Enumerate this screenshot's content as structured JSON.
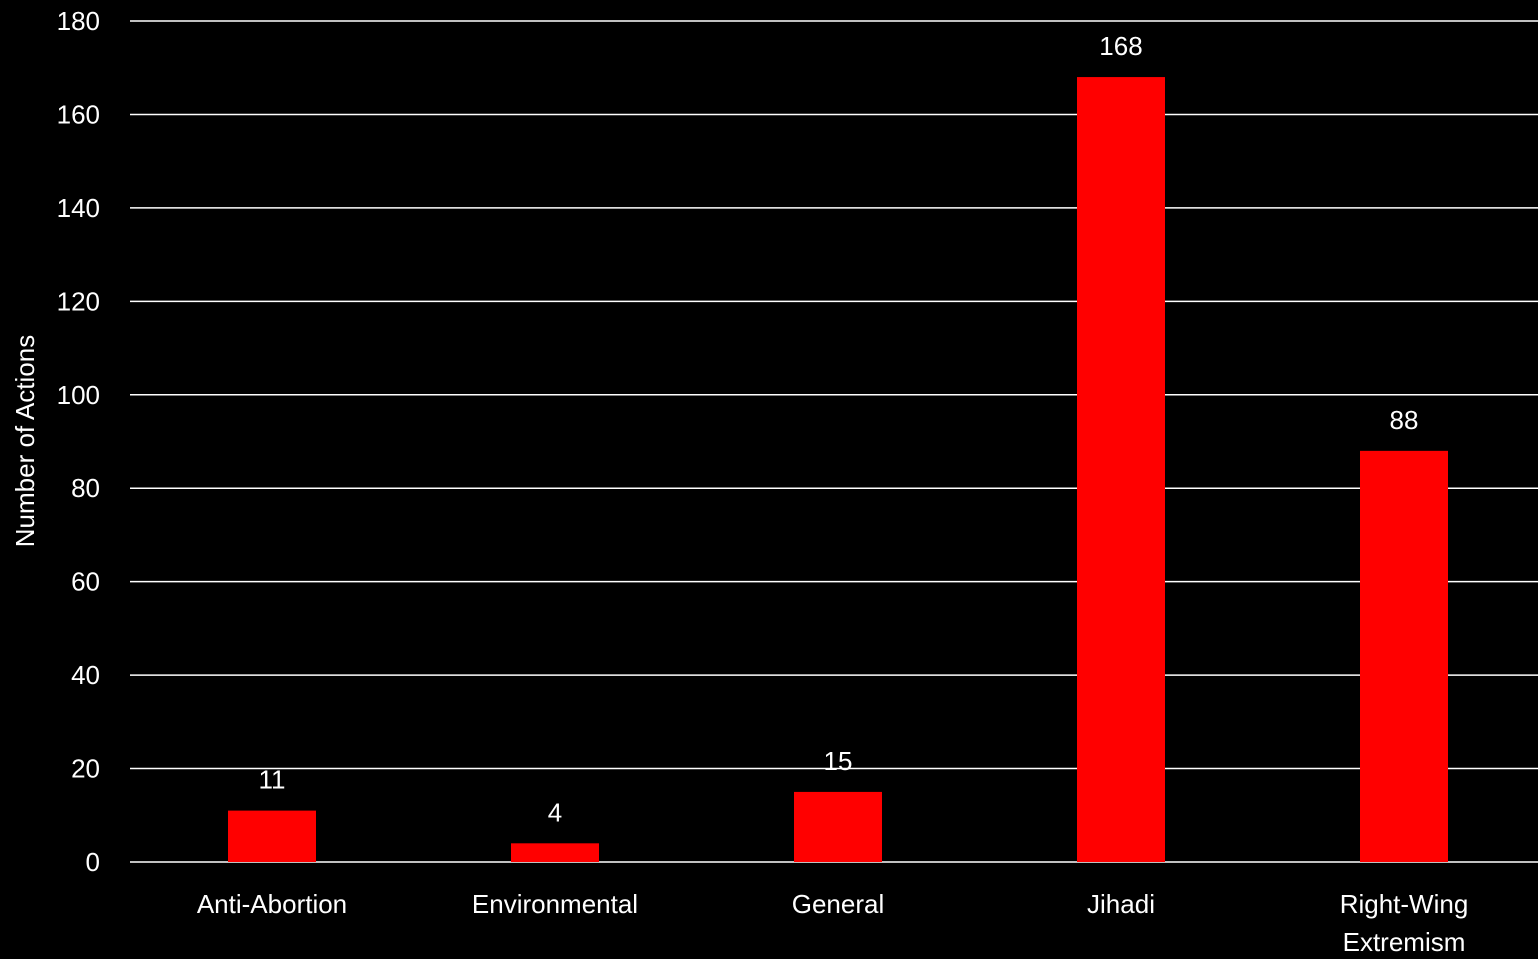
{
  "colors": {
    "background": "#000000",
    "bar": "#ff0000",
    "text": "#ffffff",
    "gridline": "#ffffff"
  },
  "chart_data": {
    "type": "bar",
    "title": "",
    "xlabel": "",
    "ylabel": "Number of Actions",
    "categories": [
      "Anti-Abortion",
      "Environmental",
      "General",
      "Jihadi",
      "Right-Wing Extremism"
    ],
    "category_lines": [
      [
        "Anti-Abortion"
      ],
      [
        "Environmental"
      ],
      [
        "General"
      ],
      [
        "Jihadi"
      ],
      [
        "Right-Wing",
        "Extremism"
      ]
    ],
    "series": [
      {
        "values": [
          11,
          4,
          15,
          168,
          88
        ]
      }
    ],
    "data_labels": [
      "11",
      "4",
      "15",
      "168",
      "88"
    ],
    "ylim": [
      0,
      180
    ],
    "yticks": [
      0,
      20,
      40,
      60,
      80,
      100,
      120,
      140,
      160,
      180
    ],
    "grid": true,
    "legend": false
  }
}
